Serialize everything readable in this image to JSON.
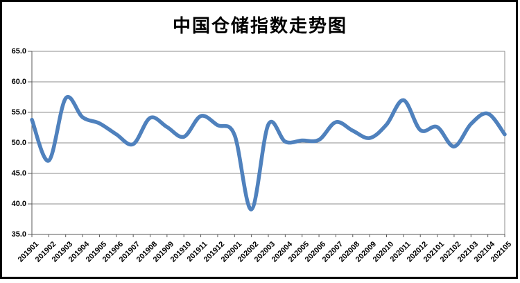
{
  "title": "中国仓储指数走势图",
  "colors": {
    "line": "#4F81BD",
    "grid": "#8C8C8C",
    "axis": "#595959",
    "frame": "#000000",
    "text": "#000000",
    "background": "#FFFFFF"
  },
  "chart_data": {
    "type": "line",
    "title": "中国仓储指数走势图",
    "categories": [
      "201901",
      "201902",
      "201903",
      "201904",
      "201905",
      "201906",
      "201907",
      "201908",
      "201909",
      "201910",
      "201911",
      "201912",
      "202001",
      "202002",
      "202003",
      "202004",
      "202005",
      "202006",
      "202007",
      "202008",
      "202009",
      "202010",
      "202011",
      "202012",
      "202101",
      "202102",
      "202103",
      "202104",
      "202105"
    ],
    "values": [
      53.8,
      47.1,
      57.3,
      54.2,
      53.2,
      51.4,
      49.8,
      54.1,
      52.6,
      51.0,
      54.4,
      52.9,
      51.3,
      39.1,
      53.0,
      50.2,
      50.4,
      50.5,
      53.4,
      52.0,
      50.8,
      53.0,
      57.0,
      52.1,
      52.6,
      49.4,
      53.1,
      54.8,
      51.4
    ],
    "xlabel": "",
    "ylabel": "",
    "ylim": [
      35.0,
      65.0
    ],
    "ytick_step": 5,
    "ytick_labels": [
      "65.0",
      "60.0",
      "55.0",
      "50.0",
      "45.0",
      "40.0",
      "35.0"
    ],
    "grid": true,
    "legend": "none",
    "smooth": true,
    "line_color": "#4F81BD"
  }
}
